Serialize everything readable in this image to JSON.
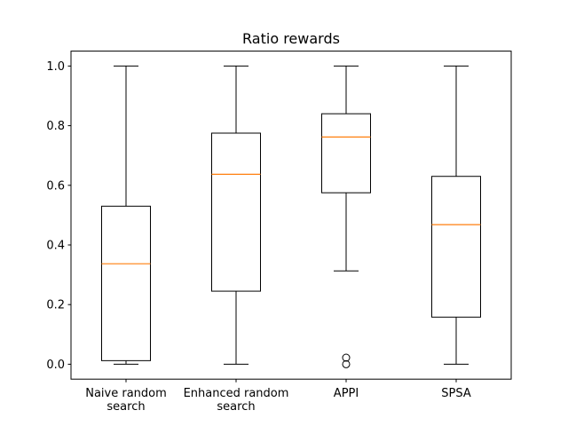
{
  "chart_data": {
    "type": "box",
    "title": "Ratio rewards",
    "xlabel": "",
    "ylabel": "",
    "ylim": [
      -0.05,
      1.05
    ],
    "yticks": [
      0.0,
      0.2,
      0.4,
      0.6,
      0.8,
      1.0
    ],
    "ytick_labels": [
      "0.0",
      "0.2",
      "0.4",
      "0.6",
      "0.8",
      "1.0"
    ],
    "grid": false,
    "box_color": "#000000",
    "median_color": "#ff7f0e",
    "categories": [
      {
        "label_lines": [
          "Naive random",
          "search"
        ],
        "whisker_low": 0.0,
        "q1": 0.012,
        "median": 0.337,
        "q3": 0.53,
        "whisker_high": 1.0,
        "outliers": []
      },
      {
        "label_lines": [
          "Enhanced random",
          "search"
        ],
        "whisker_low": 0.0,
        "q1": 0.245,
        "median": 0.637,
        "q3": 0.775,
        "whisker_high": 1.0,
        "outliers": []
      },
      {
        "label_lines": [
          "APPI"
        ],
        "whisker_low": 0.313,
        "q1": 0.575,
        "median": 0.762,
        "q3": 0.84,
        "whisker_high": 1.0,
        "outliers": [
          0.0,
          0.022
        ]
      },
      {
        "label_lines": [
          "SPSA"
        ],
        "whisker_low": 0.0,
        "q1": 0.158,
        "median": 0.468,
        "q3": 0.63,
        "whisker_high": 1.0,
        "outliers": []
      }
    ]
  }
}
